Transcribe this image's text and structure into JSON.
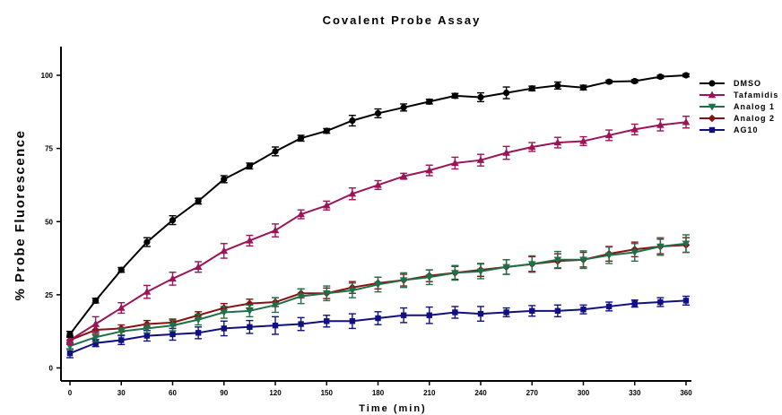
{
  "chart_data": {
    "type": "line",
    "title": "Covalent Probe Assay",
    "xlabel": "Time (min)",
    "ylabel": "% Probe Fluorescence",
    "xlim": [
      0,
      360
    ],
    "ylim": [
      0,
      105
    ],
    "xticks": [
      0,
      30,
      60,
      90,
      120,
      150,
      180,
      210,
      240,
      270,
      300,
      330,
      360
    ],
    "yticks": [
      0,
      25,
      50,
      75,
      100
    ],
    "x": [
      0,
      15,
      30,
      45,
      60,
      75,
      90,
      105,
      120,
      135,
      150,
      165,
      180,
      195,
      210,
      225,
      240,
      255,
      270,
      285,
      300,
      315,
      330,
      345,
      360
    ],
    "legend_position": "right",
    "series": [
      {
        "name": "DMSO",
        "color": "#000000",
        "marker": "circle",
        "values": [
          11.5,
          23,
          33.5,
          43,
          50.5,
          57,
          64.5,
          69,
          74,
          78.5,
          81,
          84.5,
          87,
          89,
          91,
          93,
          92.5,
          94,
          95.5,
          96.5,
          95.8,
          97.8,
          98,
          99.5,
          100
        ],
        "errors": [
          1,
          0.8,
          0.8,
          1.5,
          1.5,
          1,
          1.2,
          1,
          1.5,
          1,
          0.8,
          1.8,
          1.5,
          1.2,
          0.8,
          0.8,
          1.5,
          2,
          0.8,
          1.2,
          0.8,
          0.5,
          0.5,
          0.5,
          0.5
        ]
      },
      {
        "name": "Tafamidis",
        "color": "#9C1458",
        "marker": "triangle-up",
        "values": [
          9.5,
          15,
          20.5,
          26,
          30.5,
          34.5,
          40,
          43.5,
          47,
          52.5,
          55.5,
          59.5,
          62.5,
          65.5,
          67.5,
          70,
          71,
          73.5,
          75.5,
          77,
          77.5,
          79.5,
          81.5,
          83,
          84
        ],
        "errors": [
          1.5,
          2.5,
          1.8,
          2.2,
          2.2,
          1.8,
          2.5,
          1.8,
          2.2,
          1.5,
          1.5,
          2,
          1.5,
          1,
          1.8,
          2,
          2,
          2.2,
          1.5,
          1.8,
          1.5,
          1.8,
          1.8,
          2,
          2
        ]
      },
      {
        "name": "Analog 1",
        "color": "#1E7048",
        "marker": "triangle-down",
        "values": [
          7.5,
          10.5,
          12.5,
          13.5,
          14.5,
          16.5,
          19,
          19.5,
          21.5,
          24.5,
          25.5,
          26.5,
          28.5,
          30,
          31,
          32.5,
          33,
          34.5,
          35.5,
          37,
          37,
          38.5,
          39.5,
          41.5,
          42.5
        ],
        "errors": [
          1.2,
          1.5,
          1.2,
          1.5,
          1.8,
          1.8,
          2,
          2,
          2.5,
          2.5,
          2.5,
          2.5,
          2.5,
          2.5,
          2.5,
          2.5,
          2.5,
          2.5,
          2.8,
          2.8,
          3,
          2.8,
          3,
          3,
          3
        ]
      },
      {
        "name": "Analog 2",
        "color": "#8B1010",
        "marker": "diamond",
        "values": [
          9.5,
          13,
          13.5,
          15,
          15.5,
          18,
          20.5,
          22,
          22.5,
          25.5,
          25.5,
          27.5,
          29,
          30,
          31.5,
          32.5,
          33.5,
          34.5,
          35.5,
          36.5,
          37,
          39,
          40.5,
          41.5,
          42
        ],
        "errors": [
          1.2,
          1.2,
          1.2,
          1.2,
          1.2,
          1.2,
          1.5,
          1.5,
          1.5,
          1.5,
          1.8,
          2,
          2,
          2,
          2,
          2.2,
          2.2,
          2.5,
          2.5,
          2.5,
          2.5,
          2.5,
          2.5,
          2.5,
          2.5
        ]
      },
      {
        "name": "AG10",
        "color": "#101080",
        "marker": "square",
        "values": [
          5,
          8.5,
          9.5,
          11,
          11.5,
          12,
          13.5,
          14,
          14.5,
          15,
          16,
          16,
          17,
          18,
          18,
          19,
          18.5,
          19,
          19.5,
          19.5,
          20,
          21,
          22,
          22.5,
          23
        ],
        "errors": [
          1.5,
          1.2,
          1.5,
          1.8,
          2,
          2,
          2.5,
          2.2,
          3,
          2.2,
          2,
          2.5,
          2.2,
          2.5,
          2.8,
          2,
          2.5,
          1.5,
          1.8,
          2,
          1.5,
          1.5,
          1.2,
          1.5,
          1.5
        ]
      }
    ]
  }
}
